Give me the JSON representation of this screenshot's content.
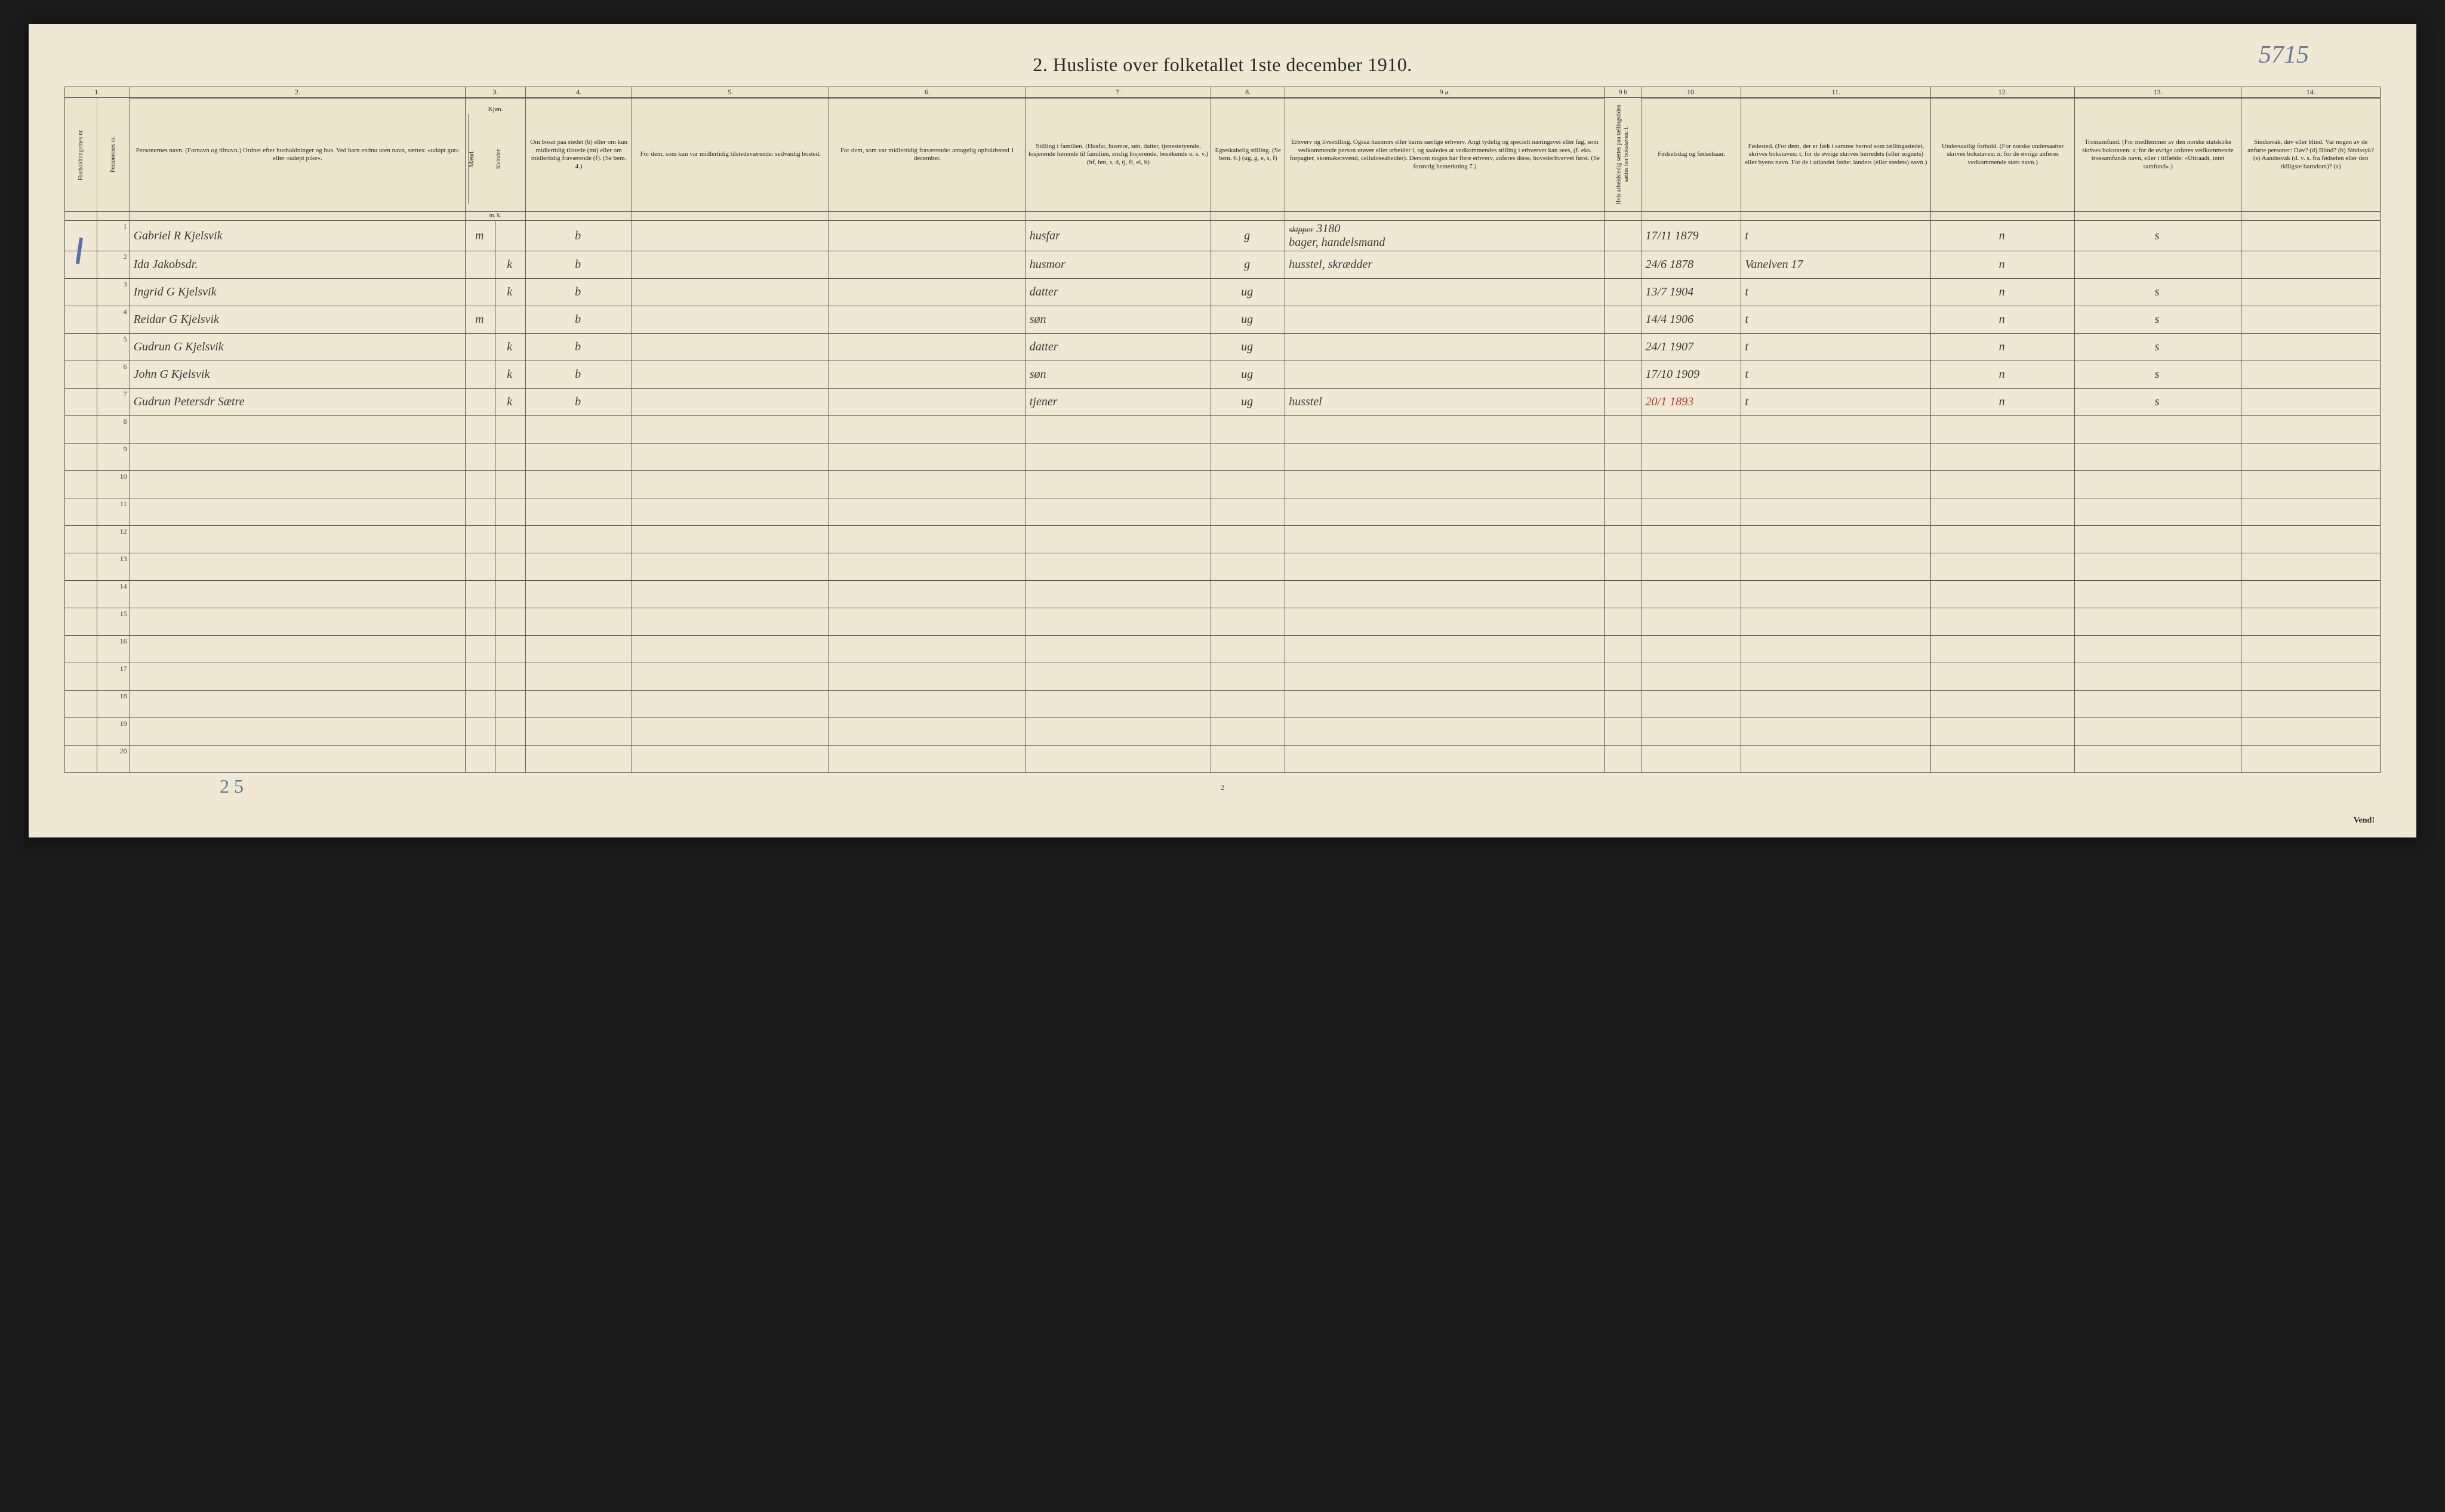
{
  "title": "2.  Husliste over folketallet 1ste december 1910.",
  "top_annotation": "5715",
  "bottom_annotation": "2 5",
  "page_number": "2",
  "vend": "Vend!",
  "column_numbers": [
    "1.",
    "2.",
    "3.",
    "4.",
    "5.",
    "6.",
    "7.",
    "8.",
    "9 a.",
    "9 b",
    "10.",
    "11.",
    "12.",
    "13.",
    "14."
  ],
  "headers": {
    "c1a": "Husholdningernes nr.",
    "c1b": "Personernes nr.",
    "c2": "Personernes navn.\n(Fornavn og tilnavn.)\nOrdnet efter husholdninger og hus.\nVed barn endnu uten navn, sættes: «udøpt gut» eller «udøpt pike».",
    "c3": "Kjøn.",
    "c3a": "Mænd.",
    "c3b": "Kvinder.",
    "c3sub": "m.  k.",
    "c4": "Om bosat paa stedet (b) eller om kun midlertidig tilstede (mt) eller om midlertidig fraværende (f).\n(Se bem. 4.)",
    "c5": "For dem, som kun var midlertidig tilstedeværende:\nsedvanlig bosted.",
    "c6": "For dem, som var midlertidig fraværende:\nantagelig opholdssted 1 december.",
    "c7": "Stilling i familien.\n(Husfar, husmor, søn, datter, tjenestetyende, losjerende hørende til familien, enslig losjerende, besøkende o. s. v.)\n(hf, hm, s, d, tj, fl, el, b)",
    "c8": "Egteskabelig stilling.\n(Se bem. 6.)\n(ug, g, e, s, f)",
    "c9a": "Erhverv og livsstilling.\nOgsaa husmors eller barns særlige erhverv.\nAngi tydelig og specielt næringsvei eller fag, som vedkommende person utøver eller arbeider i, og saaledes at vedkommendes stilling i erhvervet kan sees, (f. eks. forpagter, skomakersvend, celluloseabeider). Dersom nogen har flere erhverv, anføres disse, hovederhvervet først.\n(Se forøvrig bemerkning 7.)",
    "c9b": "Hvis arbeidsledig sættes paa tællingstiden sættes her bokstaven: l.",
    "c10": "Fødselsdag og fødselsaar.",
    "c11": "Fødested.\n(For dem, der er født i samme herred som tællingsstedet, skrives bokstaven: t; for de øvrige skrives herredets (eller sognets) eller byens navn.\nFor de i utlandet fødte: landets (eller stedets) navn.)",
    "c12": "Undersaatlig forhold.\n(For norske undersaatter skrives bokstaven: n; for de øvrige anføres vedkommende stats navn.)",
    "c13": "Trossamfund.\n(For medlemmer av den norske statskirke skrives bokstaven: s; for de øvrige anføres vedkommende trossamfunds navn, eller i tilfælde: «Uttraadt, intet samfund».)",
    "c14": "Sindssvak, døv eller blind.\nVar nogen av de anførte personer:\nDøv?        (d)\nBlind?      (b)\nSindssyk?  (s)\nAandssvak (d. v. s. fra fødselen eller den tidligste barndom)?  (a)"
  },
  "col_widths": {
    "c1a": "1.4%",
    "c1b": "1.4%",
    "c2": "14.5%",
    "c3a": "1.3%",
    "c3b": "1.3%",
    "c4": "4.6%",
    "c5": "8.5%",
    "c6": "8.5%",
    "c7": "8.0%",
    "c8": "3.2%",
    "c9a": "13.8%",
    "c9b": "1.6%",
    "c10": "4.3%",
    "c11": "8.2%",
    "c12": "6.2%",
    "c13": "7.2%",
    "c14": "6.0%"
  },
  "rows": [
    {
      "n": "1",
      "name": "Gabriel R Kjelsvik",
      "m": "m",
      "k": "",
      "res": "b",
      "c5": "",
      "c6": "",
      "fam": "husfar",
      "egte": "g",
      "erhv": "<span class='struck small-note'>skipper</span> 3180\nbager, handelsmand",
      "c9b": "",
      "fod": "17/11 1879",
      "sted": "t",
      "und": "n",
      "tro": "s",
      "c14": ""
    },
    {
      "n": "2",
      "name": "Ida Jakobsdr.",
      "m": "",
      "k": "k",
      "res": "b",
      "c5": "",
      "c6": "",
      "fam": "husmor",
      "egte": "g",
      "erhv": "husstel, skrædder",
      "c9b": "",
      "fod": "24/6 1878",
      "sted": "Vanelven 17",
      "und": "n",
      "tro": "",
      "c14": ""
    },
    {
      "n": "3",
      "name": "Ingrid G Kjelsvik",
      "m": "",
      "k": "k",
      "res": "b",
      "c5": "",
      "c6": "",
      "fam": "datter",
      "egte": "ug",
      "erhv": "",
      "c9b": "",
      "fod": "13/7 1904",
      "sted": "t",
      "und": "n",
      "tro": "s",
      "c14": ""
    },
    {
      "n": "4",
      "name": "Reidar G Kjelsvik",
      "m": "m",
      "k": "",
      "res": "b",
      "c5": "",
      "c6": "",
      "fam": "søn",
      "egte": "ug",
      "erhv": "",
      "c9b": "",
      "fod": "14/4 1906",
      "sted": "t",
      "und": "n",
      "tro": "s",
      "c14": ""
    },
    {
      "n": "5",
      "name": "Gudrun G Kjelsvik",
      "m": "",
      "k": "k",
      "res": "b",
      "c5": "",
      "c6": "",
      "fam": "datter",
      "egte": "ug",
      "erhv": "",
      "c9b": "",
      "fod": "24/1 1907",
      "sted": "t",
      "und": "n",
      "tro": "s",
      "c14": ""
    },
    {
      "n": "6",
      "name": "John G Kjelsvik",
      "m": "",
      "k": "k",
      "res": "b",
      "c5": "",
      "c6": "",
      "fam": "søn",
      "egte": "ug",
      "erhv": "",
      "c9b": "",
      "fod": "17/10 1909",
      "sted": "t",
      "und": "n",
      "tro": "s",
      "c14": ""
    },
    {
      "n": "7",
      "name": "Gudrun Petersdr Sætre",
      "m": "",
      "k": "k",
      "res": "b",
      "c5": "",
      "c6": "",
      "fam": "tjener",
      "egte": "ug",
      "erhv": "husstel",
      "c9b": "",
      "fod": "20/1 1893",
      "fod_red": true,
      "sted": "t",
      "und": "n",
      "tro": "s",
      "c14": ""
    },
    {
      "n": "8"
    },
    {
      "n": "9"
    },
    {
      "n": "10"
    },
    {
      "n": "11"
    },
    {
      "n": "12"
    },
    {
      "n": "13"
    },
    {
      "n": "14"
    },
    {
      "n": "15"
    },
    {
      "n": "16"
    },
    {
      "n": "17"
    },
    {
      "n": "18"
    },
    {
      "n": "19"
    },
    {
      "n": "20"
    }
  ]
}
